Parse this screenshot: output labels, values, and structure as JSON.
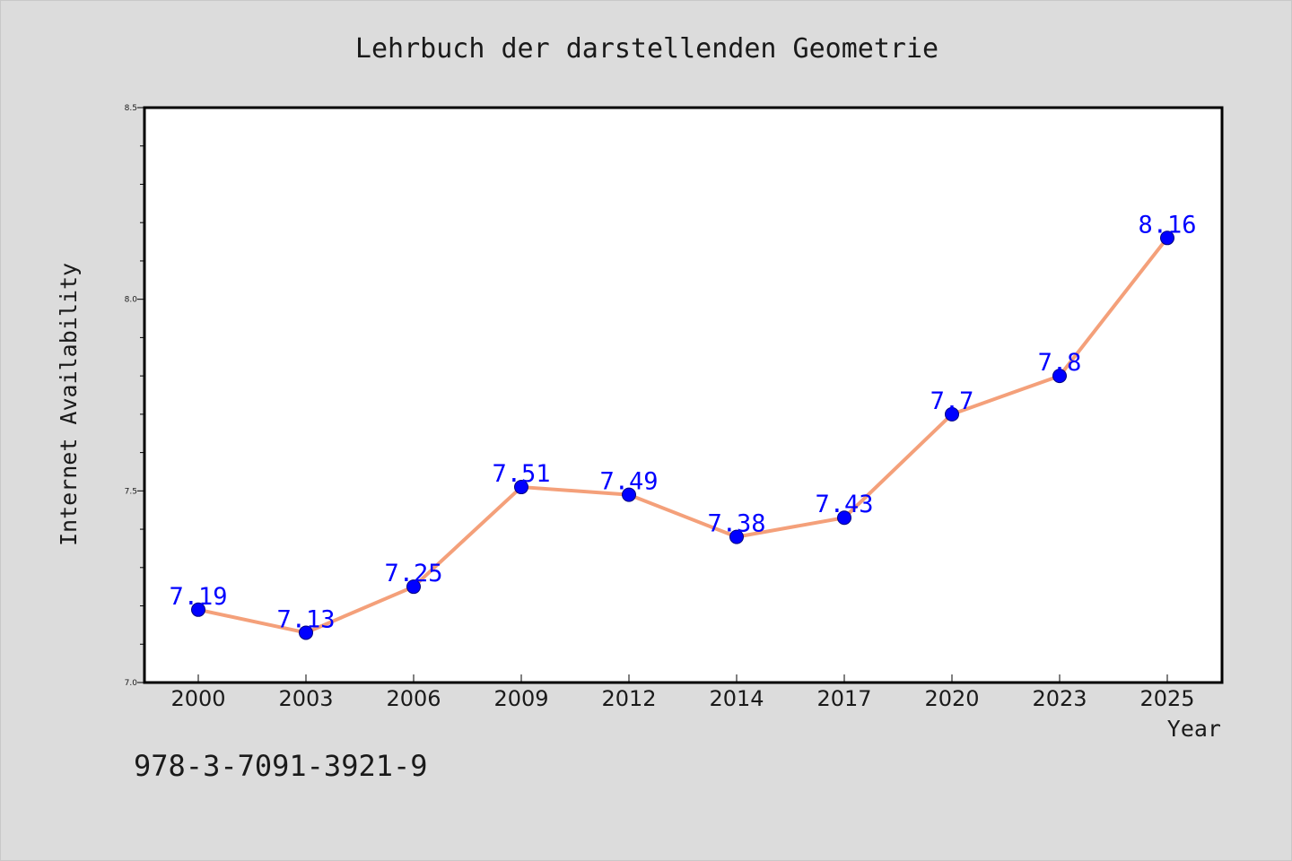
{
  "chart_data": {
    "type": "line",
    "title": "Lehrbuch der darstellenden Geometrie",
    "xlabel": "Year",
    "ylabel": "Internet Availability",
    "categories": [
      "2000",
      "2003",
      "2006",
      "2009",
      "2012",
      "2014",
      "2017",
      "2020",
      "2023",
      "2025"
    ],
    "values": [
      7.19,
      7.13,
      7.25,
      7.51,
      7.49,
      7.38,
      7.43,
      7.7,
      7.8,
      8.16
    ],
    "value_labels": [
      "7.19",
      "7.13",
      "7.25",
      "7.51",
      "7.49",
      "7.38",
      "7.43",
      "7.7",
      "7.8",
      "8.16"
    ],
    "ylim": [
      7.0,
      8.5
    ],
    "yticks": [
      "7.0",
      "7.5",
      "8.0",
      "8.5"
    ],
    "grid": false,
    "legend": "none",
    "colors": {
      "line": "#f4a07a",
      "marker": "#0000ff",
      "marker_edge": "#000080",
      "data_label": "#0000ff",
      "background": "#dcdcdc",
      "plot_area": "#ffffff"
    }
  },
  "footer": {
    "isbn": "978-3-7091-3921-9"
  }
}
